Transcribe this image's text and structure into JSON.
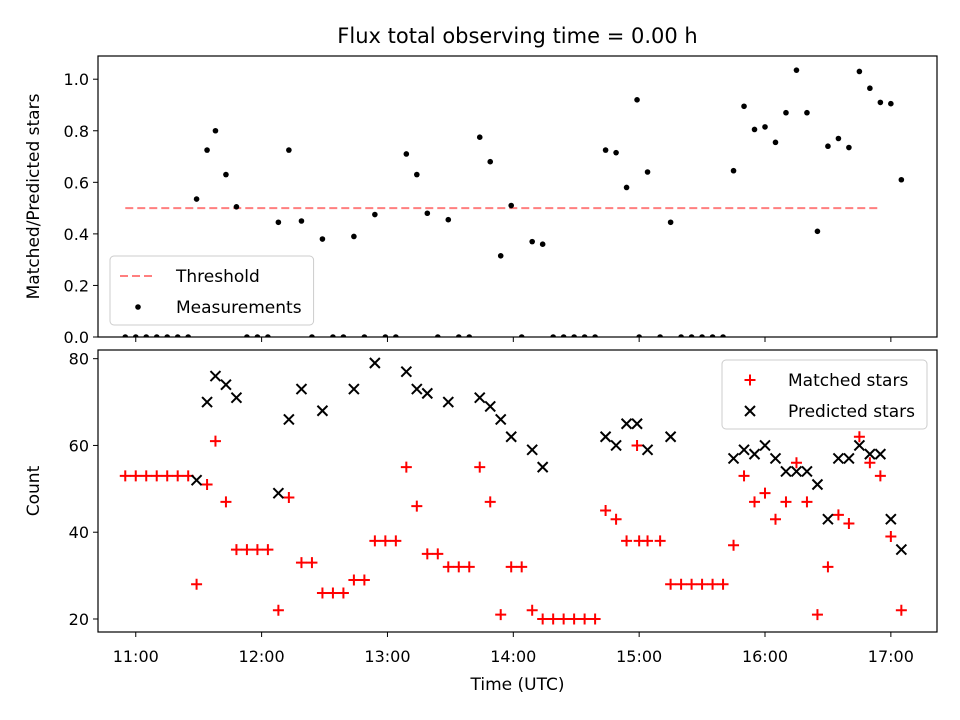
{
  "figure": {
    "title": "Flux total observing time = 0.00 h"
  },
  "chart_data": [
    {
      "type": "scatter",
      "panel": "top",
      "ylabel": "Matched/Predicted stars",
      "xlabel": "",
      "xlim": [
        "10:42",
        "17:22"
      ],
      "ylim": [
        0,
        1.09
      ],
      "grid": false,
      "legend_position": "lower-left",
      "xticks": [],
      "yticks": [
        {
          "value": 0.0,
          "label": "0.0"
        },
        {
          "value": 0.2,
          "label": "0.2"
        },
        {
          "value": 0.4,
          "label": "0.4"
        },
        {
          "value": 0.6,
          "label": "0.6"
        },
        {
          "value": 0.8,
          "label": "0.8"
        },
        {
          "value": 1.0,
          "label": "1.0"
        }
      ],
      "threshold": {
        "name": "Threshold",
        "value": 0.5,
        "x_start": "10:55",
        "x_end": "16:55",
        "color": "#ff7f7f",
        "style": "dashed"
      },
      "series": [
        {
          "name": "Measurements",
          "marker": "dot",
          "color": "#000000",
          "points": [
            [
              "10:55",
              0
            ],
            [
              "11:00",
              0
            ],
            [
              "11:05",
              0
            ],
            [
              "11:10",
              0
            ],
            [
              "11:15",
              0
            ],
            [
              "11:20",
              0
            ],
            [
              "11:25",
              0
            ],
            [
              "11:29",
              0.535
            ],
            [
              "11:34",
              0.725
            ],
            [
              "11:38",
              0.8
            ],
            [
              "11:43",
              0.63
            ],
            [
              "11:48",
              0.505
            ],
            [
              "11:53",
              0
            ],
            [
              "11:58",
              0
            ],
            [
              "12:03",
              0
            ],
            [
              "12:08",
              0.445
            ],
            [
              "12:13",
              0.725
            ],
            [
              "12:19",
              0.45
            ],
            [
              "12:24",
              0
            ],
            [
              "12:29",
              0.38
            ],
            [
              "12:34",
              0
            ],
            [
              "12:39",
              0
            ],
            [
              "12:44",
              0.39
            ],
            [
              "12:49",
              0
            ],
            [
              "12:54",
              0.475
            ],
            [
              "12:59",
              0
            ],
            [
              "13:04",
              0
            ],
            [
              "13:09",
              0.71
            ],
            [
              "13:14",
              0.63
            ],
            [
              "13:19",
              0.48
            ],
            [
              "13:24",
              0
            ],
            [
              "13:29",
              0.455
            ],
            [
              "13:34",
              0
            ],
            [
              "13:39",
              0
            ],
            [
              "13:44",
              0.775
            ],
            [
              "13:49",
              0.68
            ],
            [
              "13:54",
              0.315
            ],
            [
              "13:59",
              0.51
            ],
            [
              "14:04",
              0
            ],
            [
              "14:09",
              0.37
            ],
            [
              "14:14",
              0.36
            ],
            [
              "14:19",
              0
            ],
            [
              "14:24",
              0
            ],
            [
              "14:29",
              0
            ],
            [
              "14:34",
              0
            ],
            [
              "14:39",
              0
            ],
            [
              "14:44",
              0.725
            ],
            [
              "14:49",
              0.715
            ],
            [
              "14:54",
              0.58
            ],
            [
              "14:59",
              0.92
            ],
            [
              "15:00",
              0
            ],
            [
              "15:04",
              0.64
            ],
            [
              "15:10",
              0
            ],
            [
              "15:15",
              0.445
            ],
            [
              "15:20",
              0
            ],
            [
              "15:25",
              0
            ],
            [
              "15:30",
              0
            ],
            [
              "15:35",
              0
            ],
            [
              "15:40",
              0
            ],
            [
              "15:45",
              0.645
            ],
            [
              "15:50",
              0.895
            ],
            [
              "15:55",
              0.805
            ],
            [
              "16:00",
              0.815
            ],
            [
              "16:05",
              0.755
            ],
            [
              "16:10",
              0.87
            ],
            [
              "16:15",
              1.035
            ],
            [
              "16:20",
              0.87
            ],
            [
              "16:25",
              0.41
            ],
            [
              "16:30",
              0.74
            ],
            [
              "16:35",
              0.77
            ],
            [
              "16:40",
              0.735
            ],
            [
              "16:45",
              1.03
            ],
            [
              "16:50",
              0.965
            ],
            [
              "16:55",
              0.91
            ],
            [
              "17:00",
              0.905
            ],
            [
              "17:05",
              0.61
            ]
          ]
        }
      ]
    },
    {
      "type": "scatter",
      "panel": "bottom",
      "ylabel": "Count",
      "xlabel": "Time (UTC)",
      "xlim": [
        "10:42",
        "17:22"
      ],
      "ylim": [
        17,
        82
      ],
      "grid": false,
      "legend_position": "top-right",
      "xticks": [
        {
          "value": "11:00",
          "label": "11:00"
        },
        {
          "value": "12:00",
          "label": "12:00"
        },
        {
          "value": "13:00",
          "label": "13:00"
        },
        {
          "value": "14:00",
          "label": "14:00"
        },
        {
          "value": "15:00",
          "label": "15:00"
        },
        {
          "value": "16:00",
          "label": "16:00"
        },
        {
          "value": "17:00",
          "label": "17:00"
        }
      ],
      "yticks": [
        {
          "value": 20,
          "label": "20"
        },
        {
          "value": 40,
          "label": "40"
        },
        {
          "value": 60,
          "label": "60"
        },
        {
          "value": 80,
          "label": "80"
        }
      ],
      "series": [
        {
          "name": "Matched stars",
          "marker": "plus",
          "color": "#ff0000",
          "points": [
            [
              "10:55",
              53
            ],
            [
              "11:00",
              53
            ],
            [
              "11:05",
              53
            ],
            [
              "11:10",
              53
            ],
            [
              "11:15",
              53
            ],
            [
              "11:20",
              53
            ],
            [
              "11:25",
              53
            ],
            [
              "11:29",
              28
            ],
            [
              "11:34",
              51
            ],
            [
              "11:38",
              61
            ],
            [
              "11:43",
              47
            ],
            [
              "11:48",
              36
            ],
            [
              "11:53",
              36
            ],
            [
              "11:58",
              36
            ],
            [
              "12:03",
              36
            ],
            [
              "12:08",
              22
            ],
            [
              "12:13",
              48
            ],
            [
              "12:19",
              33
            ],
            [
              "12:24",
              33
            ],
            [
              "12:29",
              26
            ],
            [
              "12:34",
              26
            ],
            [
              "12:39",
              26
            ],
            [
              "12:44",
              29
            ],
            [
              "12:49",
              29
            ],
            [
              "12:54",
              38
            ],
            [
              "12:59",
              38
            ],
            [
              "13:04",
              38
            ],
            [
              "13:09",
              55
            ],
            [
              "13:14",
              46
            ],
            [
              "13:19",
              35
            ],
            [
              "13:24",
              35
            ],
            [
              "13:29",
              32
            ],
            [
              "13:34",
              32
            ],
            [
              "13:39",
              32
            ],
            [
              "13:44",
              55
            ],
            [
              "13:49",
              47
            ],
            [
              "13:54",
              21
            ],
            [
              "13:59",
              32
            ],
            [
              "14:04",
              32
            ],
            [
              "14:09",
              22
            ],
            [
              "14:14",
              20
            ],
            [
              "14:19",
              20
            ],
            [
              "14:24",
              20
            ],
            [
              "14:29",
              20
            ],
            [
              "14:34",
              20
            ],
            [
              "14:39",
              20
            ],
            [
              "14:44",
              45
            ],
            [
              "14:49",
              43
            ],
            [
              "14:54",
              38
            ],
            [
              "14:59",
              60
            ],
            [
              "15:00",
              38
            ],
            [
              "15:04",
              38
            ],
            [
              "15:10",
              38
            ],
            [
              "15:15",
              28
            ],
            [
              "15:20",
              28
            ],
            [
              "15:25",
              28
            ],
            [
              "15:30",
              28
            ],
            [
              "15:35",
              28
            ],
            [
              "15:40",
              28
            ],
            [
              "15:45",
              37
            ],
            [
              "15:50",
              53
            ],
            [
              "15:55",
              47
            ],
            [
              "16:00",
              49
            ],
            [
              "16:05",
              43
            ],
            [
              "16:10",
              47
            ],
            [
              "16:15",
              56
            ],
            [
              "16:20",
              47
            ],
            [
              "16:25",
              21
            ],
            [
              "16:30",
              32
            ],
            [
              "16:35",
              44
            ],
            [
              "16:40",
              42
            ],
            [
              "16:45",
              62
            ],
            [
              "16:50",
              56
            ],
            [
              "16:55",
              53
            ],
            [
              "17:00",
              39
            ],
            [
              "17:05",
              22
            ]
          ]
        },
        {
          "name": "Predicted stars",
          "marker": "x",
          "color": "#000000",
          "points": [
            [
              "11:29",
              52
            ],
            [
              "11:34",
              70
            ],
            [
              "11:38",
              76
            ],
            [
              "11:43",
              74
            ],
            [
              "11:48",
              71
            ],
            [
              "12:08",
              49
            ],
            [
              "12:13",
              66
            ],
            [
              "12:19",
              73
            ],
            [
              "12:29",
              68
            ],
            [
              "12:44",
              73
            ],
            [
              "12:54",
              79
            ],
            [
              "13:09",
              77
            ],
            [
              "13:14",
              73
            ],
            [
              "13:19",
              72
            ],
            [
              "13:29",
              70
            ],
            [
              "13:44",
              71
            ],
            [
              "13:49",
              69
            ],
            [
              "13:54",
              66
            ],
            [
              "13:59",
              62
            ],
            [
              "14:09",
              59
            ],
            [
              "14:14",
              55
            ],
            [
              "14:44",
              62
            ],
            [
              "14:49",
              60
            ],
            [
              "14:54",
              65
            ],
            [
              "14:59",
              65
            ],
            [
              "15:04",
              59
            ],
            [
              "15:15",
              62
            ],
            [
              "15:45",
              57
            ],
            [
              "15:50",
              59
            ],
            [
              "15:55",
              58
            ],
            [
              "16:00",
              60
            ],
            [
              "16:05",
              57
            ],
            [
              "16:10",
              54
            ],
            [
              "16:15",
              54
            ],
            [
              "16:20",
              54
            ],
            [
              "16:25",
              51
            ],
            [
              "16:30",
              43
            ],
            [
              "16:35",
              57
            ],
            [
              "16:40",
              57
            ],
            [
              "16:45",
              60
            ],
            [
              "16:50",
              58
            ],
            [
              "16:55",
              58
            ],
            [
              "17:00",
              43
            ],
            [
              "17:05",
              36
            ]
          ]
        }
      ]
    }
  ]
}
